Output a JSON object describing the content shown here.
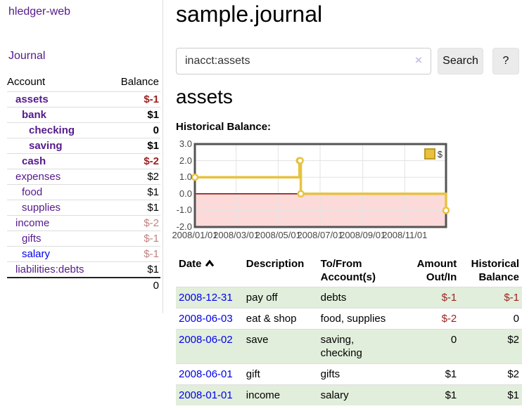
{
  "colors": {
    "link_purple": "#551a8b",
    "link_blue": "#0000ee",
    "negative_strong": "#9c1f1f",
    "negative_soft": "#c28080",
    "row_highlight_green": "#e1eedb",
    "chart_gold": "#e8c23f",
    "chart_negative_region": "#fcdada",
    "chart_zero_line": "#8b0000",
    "chart_border": "#545454",
    "chart_grid": "#e3e3e3"
  },
  "brand": "hledger-web",
  "nav": {
    "journal_label": "Journal"
  },
  "sidebar": {
    "header": {
      "account": "Account",
      "balance": "Balance"
    },
    "accounts": [
      {
        "name": "assets",
        "balance": "$-1",
        "indent": 1,
        "bold": true
      },
      {
        "name": "bank",
        "balance": "$1",
        "indent": 2,
        "bold": true
      },
      {
        "name": "checking",
        "balance": "0",
        "indent": 3,
        "bold": true
      },
      {
        "name": "saving",
        "balance": "$1",
        "indent": 3,
        "bold": true
      },
      {
        "name": "cash",
        "balance": "$-2",
        "indent": 2,
        "bold": true
      },
      {
        "name": "expenses",
        "balance": "$2",
        "indent": 1,
        "bold": false
      },
      {
        "name": "food",
        "balance": "$1",
        "indent": 2,
        "bold": false
      },
      {
        "name": "supplies",
        "balance": "$1",
        "indent": 2,
        "bold": false
      },
      {
        "name": "income",
        "balance": "$-2",
        "indent": 1,
        "bold": false
      },
      {
        "name": "gifts",
        "balance": "$-1",
        "indent": 2,
        "bold": false
      },
      {
        "name": "salary",
        "balance": "$-1",
        "indent": 2,
        "bold": false,
        "link_color": "#0000ee"
      },
      {
        "name": "liabilities:debts",
        "balance": "$1",
        "indent": 1,
        "bold": false
      }
    ],
    "total": "0"
  },
  "header": {
    "title": "sample.journal"
  },
  "search": {
    "value": "inacct:assets",
    "clear_icon": "×",
    "button_label": "Search",
    "help_label": "?"
  },
  "account_page": {
    "title": "assets",
    "section_label": "Historical Balance:"
  },
  "chart_data": {
    "type": "line",
    "style": "step",
    "title": "Historical Balance:",
    "legend": [
      {
        "label": "$",
        "color": "#e8c23f"
      }
    ],
    "legend_position": "top-right",
    "grid": true,
    "x_range": [
      "2008-01-01",
      "2008-12-31"
    ],
    "ylim": [
      -2,
      3
    ],
    "x_ticks": [
      "2008/01/01",
      "2008/03/01",
      "2008/05/01",
      "2008/07/01",
      "2008/09/01",
      "2008/11/01"
    ],
    "y_ticks": [
      3.0,
      2.0,
      1.0,
      0.0,
      -1.0,
      -2.0
    ],
    "series": [
      {
        "name": "$",
        "points": [
          {
            "date": "2008-01-01",
            "value": 1
          },
          {
            "date": "2008-06-01",
            "value": 2
          },
          {
            "date": "2008-06-02",
            "value": 2
          },
          {
            "date": "2008-06-03",
            "value": 0
          },
          {
            "date": "2008-12-31",
            "value": -1
          }
        ]
      }
    ]
  },
  "register": {
    "columns": [
      {
        "label": "Date",
        "sortable": true,
        "sort": "ascending"
      },
      {
        "label": "Description"
      },
      {
        "label": "To/From Account(s)"
      },
      {
        "label": "Amount Out/In",
        "align": "right"
      },
      {
        "label": "Historical Balance",
        "align": "right"
      }
    ],
    "rows": [
      {
        "date": "2008-12-31",
        "description": "pay off",
        "accounts": "debts",
        "amount": "$-1",
        "balance": "$-1"
      },
      {
        "date": "2008-06-03",
        "description": "eat & shop",
        "accounts": "food, supplies",
        "amount": "$-2",
        "balance": "0"
      },
      {
        "date": "2008-06-02",
        "description": "save",
        "accounts": "saving, checking",
        "amount": "0",
        "balance": "$2"
      },
      {
        "date": "2008-06-01",
        "description": "gift",
        "accounts": "gifts",
        "amount": "$1",
        "balance": "$2"
      },
      {
        "date": "2008-01-01",
        "description": "income",
        "accounts": "salary",
        "amount": "$1",
        "balance": "$1"
      }
    ]
  }
}
